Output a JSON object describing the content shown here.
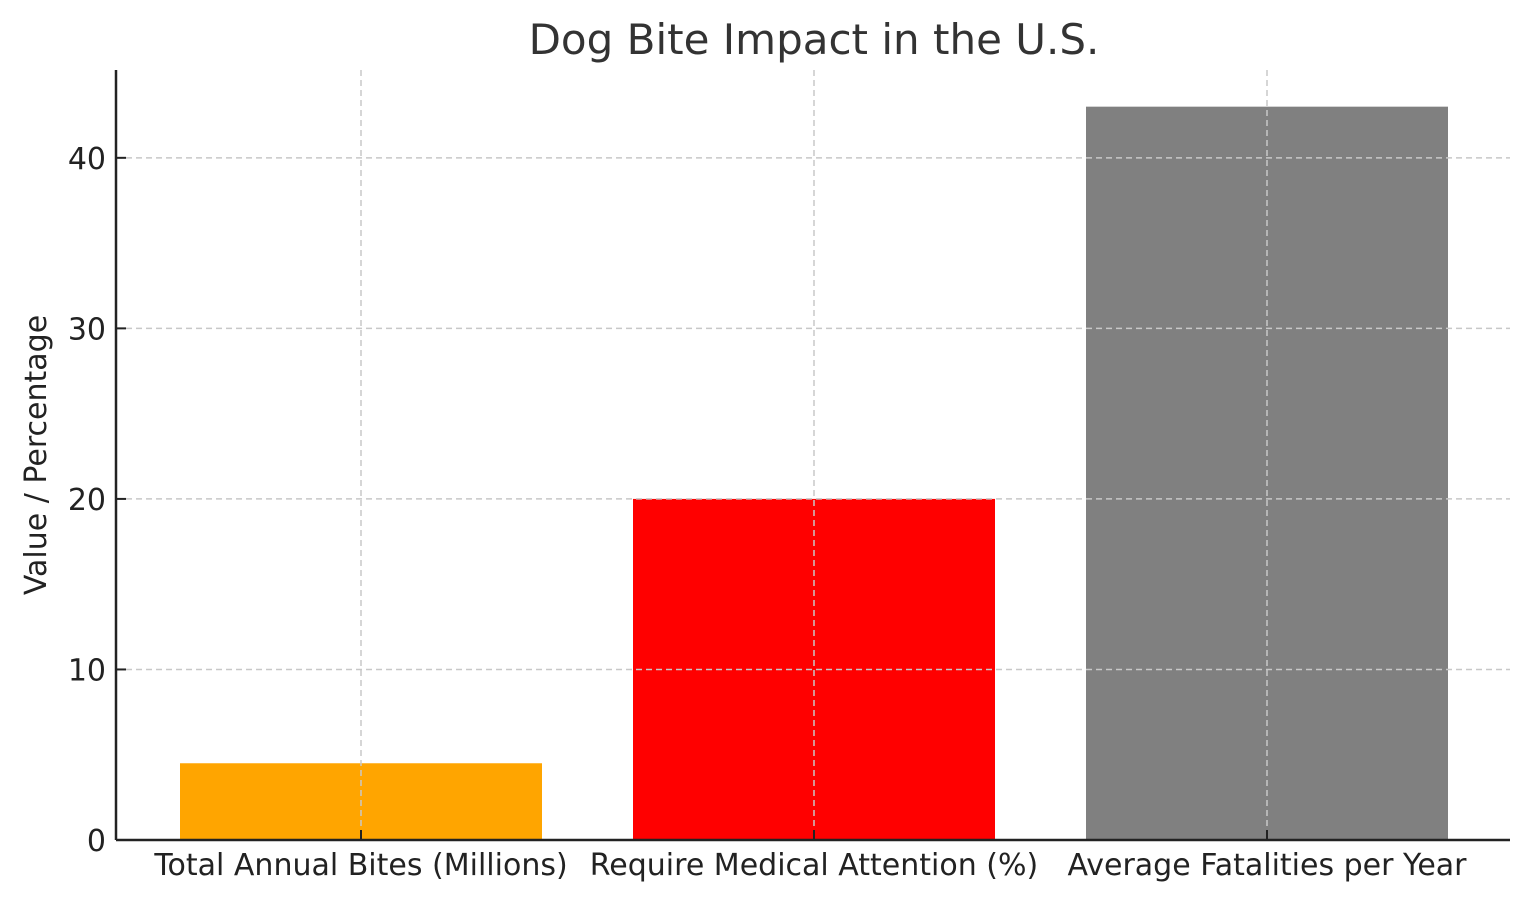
{
  "chart_data": {
    "type": "bar",
    "title": "Dog Bite Impact in the U.S.",
    "xlabel": "",
    "ylabel": "Value / Percentage",
    "categories": [
      "Total Annual Bites (Millions)",
      "Require Medical Attention (%)",
      "Average Fatalities per Year"
    ],
    "values": [
      4.5,
      20,
      43
    ],
    "colors": [
      "#ffa500",
      "#ff0000",
      "#808080"
    ],
    "ylim": [
      0,
      45.15
    ],
    "yticks": [
      0,
      10,
      20,
      30,
      40
    ],
    "grid": true,
    "grid_style": "dashed",
    "legend": "none"
  }
}
